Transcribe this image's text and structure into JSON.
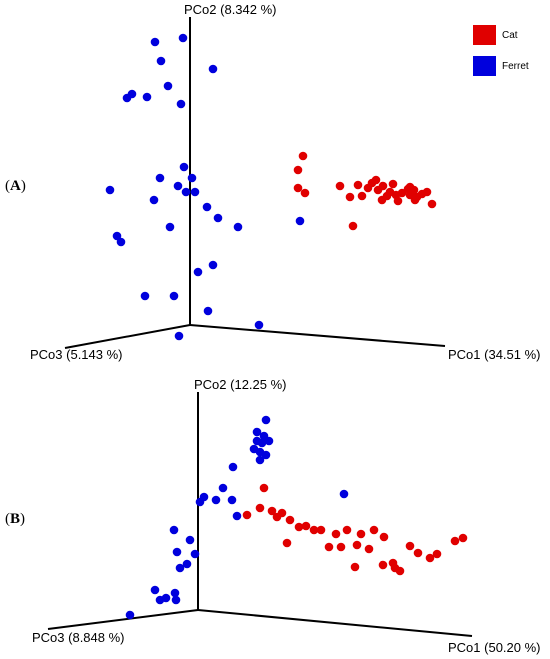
{
  "colors": {
    "cat": "#e00000",
    "ferret": "#0000dd"
  },
  "chart_data": [
    {
      "type": "scatter",
      "panel_label": "A",
      "projection": "3d",
      "axes": {
        "x": "PCo1 (34.51 %)",
        "y": "PCo2 (8.342 %)",
        "z": "PCo3 (5.143 %)"
      },
      "legend": {
        "placement": "top-right",
        "entries": [
          "Cat",
          "Ferret"
        ]
      },
      "series": [
        {
          "name": "Cat",
          "color": "#e00000",
          "points": [
            [
              303,
              156
            ],
            [
              298,
              170
            ],
            [
              298,
              188
            ],
            [
              305,
              193
            ],
            [
              340,
              186
            ],
            [
              350,
              197
            ],
            [
              353,
              226
            ],
            [
              358,
              185
            ],
            [
              362,
              196
            ],
            [
              368,
              188
            ],
            [
              372,
              183
            ],
            [
              376,
              180
            ],
            [
              378,
              190
            ],
            [
              383,
              186
            ],
            [
              382,
              200
            ],
            [
              387,
              196
            ],
            [
              390,
              192
            ],
            [
              393,
              184
            ],
            [
              396,
              195
            ],
            [
              398,
              201
            ],
            [
              402,
              193
            ],
            [
              408,
              189
            ],
            [
              410,
              195
            ],
            [
              414,
              190
            ],
            [
              417,
              197
            ],
            [
              410,
              187
            ],
            [
              422,
              194
            ],
            [
              427,
              192
            ],
            [
              432,
              204
            ],
            [
              415,
              200
            ]
          ]
        },
        {
          "name": "Ferret",
          "color": "#0000dd",
          "points": [
            [
              155,
              42
            ],
            [
              183,
              38
            ],
            [
              161,
              61
            ],
            [
              213,
              69
            ],
            [
              168,
              86
            ],
            [
              127,
              98
            ],
            [
              132,
              94
            ],
            [
              147,
              97
            ],
            [
              181,
              104
            ],
            [
              184,
              167
            ],
            [
              160,
              178
            ],
            [
              178,
              186
            ],
            [
              186,
              192
            ],
            [
              195,
              192
            ],
            [
              192,
              178
            ],
            [
              110,
              190
            ],
            [
              154,
              200
            ],
            [
              207,
              207
            ],
            [
              218,
              218
            ],
            [
              170,
              227
            ],
            [
              238,
              227
            ],
            [
              117,
              236
            ],
            [
              121,
              242
            ],
            [
              213,
              265
            ],
            [
              198,
              272
            ],
            [
              145,
              296
            ],
            [
              174,
              296
            ],
            [
              208,
              311
            ],
            [
              259,
              325
            ],
            [
              179,
              336
            ],
            [
              300,
              221
            ]
          ]
        }
      ]
    },
    {
      "type": "scatter",
      "panel_label": "B",
      "projection": "3d",
      "axes": {
        "x": "PCo1 (50.20 %)",
        "y": "PCo2 (12.25 %)",
        "z": "PCo3 (8.848 %)"
      },
      "series": [
        {
          "name": "Cat",
          "color": "#e00000",
          "points": [
            [
              264,
              488
            ],
            [
              247,
              515
            ],
            [
              260,
              508
            ],
            [
              272,
              511
            ],
            [
              277,
              517
            ],
            [
              282,
              513
            ],
            [
              290,
              520
            ],
            [
              299,
              527
            ],
            [
              306,
              526
            ],
            [
              314,
              530
            ],
            [
              321,
              530
            ],
            [
              287,
              543
            ],
            [
              336,
              534
            ],
            [
              347,
              530
            ],
            [
              361,
              534
            ],
            [
              374,
              530
            ],
            [
              384,
              537
            ],
            [
              357,
              545
            ],
            [
              341,
              547
            ],
            [
              369,
              549
            ],
            [
              410,
              546
            ],
            [
              418,
              553
            ],
            [
              430,
              558
            ],
            [
              437,
              554
            ],
            [
              455,
              541
            ],
            [
              463,
              538
            ],
            [
              383,
              565
            ],
            [
              393,
              563
            ],
            [
              400,
              571
            ],
            [
              395,
              568
            ],
            [
              355,
              567
            ],
            [
              329,
              547
            ]
          ]
        },
        {
          "name": "Ferret",
          "color": "#0000dd",
          "points": [
            [
              266,
              420
            ],
            [
              257,
              432
            ],
            [
              264,
              436
            ],
            [
              257,
              441
            ],
            [
              262,
              443
            ],
            [
              269,
              441
            ],
            [
              254,
              449
            ],
            [
              260,
              452
            ],
            [
              266,
              455
            ],
            [
              260,
              460
            ],
            [
              233,
              467
            ],
            [
              223,
              488
            ],
            [
              204,
              497
            ],
            [
              200,
              502
            ],
            [
              216,
              500
            ],
            [
              232,
              500
            ],
            [
              237,
              516
            ],
            [
              174,
              530
            ],
            [
              190,
              540
            ],
            [
              177,
              552
            ],
            [
              195,
              554
            ],
            [
              187,
              564
            ],
            [
              180,
              568
            ],
            [
              155,
              590
            ],
            [
              175,
              593
            ],
            [
              166,
              598
            ],
            [
              160,
              600
            ],
            [
              176,
              600
            ],
            [
              130,
              615
            ],
            [
              344,
              494
            ]
          ]
        }
      ]
    }
  ]
}
